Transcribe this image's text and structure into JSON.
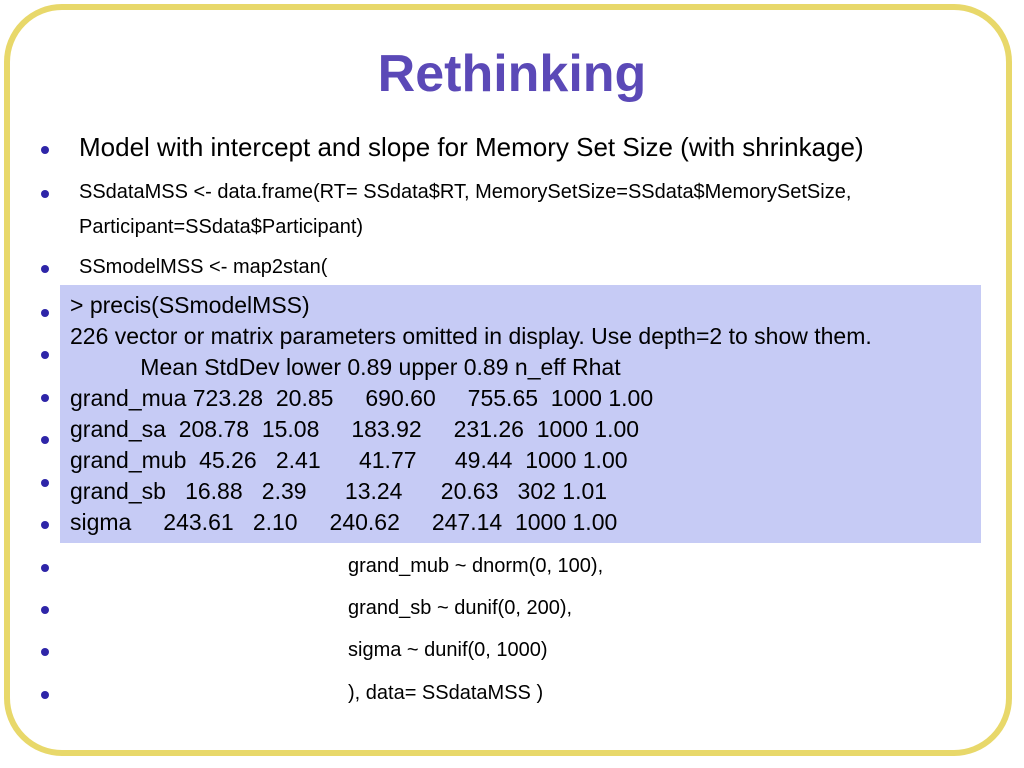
{
  "slide": {
    "title": "Rethinking",
    "bullets": [
      "Model with intercept and slope for Memory Set Size (with shrinkage)",
      "SSdataMSS <- data.frame(RT= SSdata$RT, MemorySetSize=SSdata$MemorySetSize,",
      "Participant=SSdata$Participant)",
      "SSmodelMSS <- map2stan("
    ],
    "lower_lines": [
      "grand_mub ~ dnorm(0, 100),",
      "grand_sb ~ dunif(0, 200),",
      "sigma ~ dunif(0, 1000)",
      "), data= SSdataMSS )"
    ]
  },
  "output_panel": {
    "lines": [
      "> precis(SSmodelMSS)",
      "226 vector or matrix parameters omitted in display. Use depth=2 to show them.",
      "           Mean StdDev lower 0.89 upper 0.89 n_eff Rhat",
      "grand_mua 723.28  20.85     690.60     755.65  1000 1.00",
      "grand_sa  208.78  15.08     183.92     231.26  1000 1.00",
      "grand_mub  45.26   2.41      41.77      49.44  1000 1.00",
      "grand_sb   16.88   2.39      13.24      20.63   302 1.01",
      "sigma     243.61   2.10     240.62     247.14  1000 1.00"
    ]
  },
  "colors": {
    "title": "#5b49b7",
    "bullet": "#2e25a8",
    "frame": "#e8d86a",
    "panel": "#c6cbf5"
  }
}
